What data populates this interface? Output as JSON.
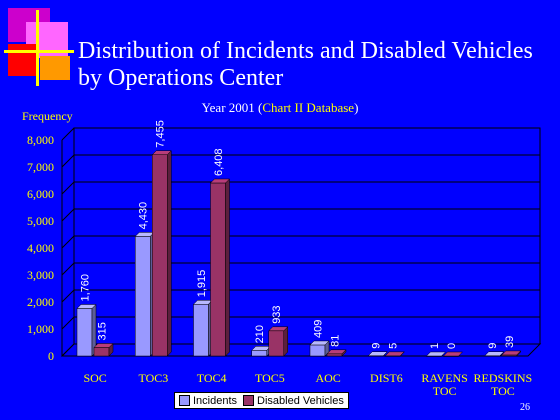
{
  "page": {
    "title_line1": "Distribution of Incidents and Disabled Vehicles",
    "title_line2": "by Operations Center",
    "subtitle_prefix": "Year 2001 (",
    "subtitle_highlight": "Chart II Database",
    "subtitle_suffix": ")",
    "page_number": "26"
  },
  "colors": {
    "background": "#0000ff",
    "incidents": "#9999ff",
    "disabled": "#993366",
    "axis_text": "#ffff00",
    "grid": "#000000"
  },
  "chart_data": {
    "type": "bar",
    "ylabel": "Frequency",
    "xlabel": "",
    "ylim": [
      0,
      8000
    ],
    "yticks": [
      "0",
      "1,000",
      "2,000",
      "3,000",
      "4,000",
      "5,000",
      "6,000",
      "7,000",
      "8,000"
    ],
    "grid": true,
    "legend_position": "bottom",
    "categories": [
      [
        "SOC"
      ],
      [
        "TOC3"
      ],
      [
        "TOC4"
      ],
      [
        "TOC5"
      ],
      [
        "AOC"
      ],
      [
        "DIST6"
      ],
      [
        "RAVENS",
        "TOC"
      ],
      [
        "REDSKINS",
        "TOC"
      ]
    ],
    "series": [
      {
        "name": "Incidents",
        "values": [
          1760,
          4430,
          1915,
          210,
          409,
          9,
          1,
          9
        ],
        "labels": [
          "1,760",
          "4,430",
          "1,915",
          "210",
          "409",
          "9",
          "1",
          "9"
        ]
      },
      {
        "name": "Disabled Vehicles",
        "values": [
          315,
          7455,
          6408,
          933,
          81,
          5,
          0,
          39
        ],
        "labels": [
          "315",
          "7,455",
          "6,408",
          "933",
          "81",
          "5",
          "0",
          "39"
        ]
      }
    ]
  }
}
